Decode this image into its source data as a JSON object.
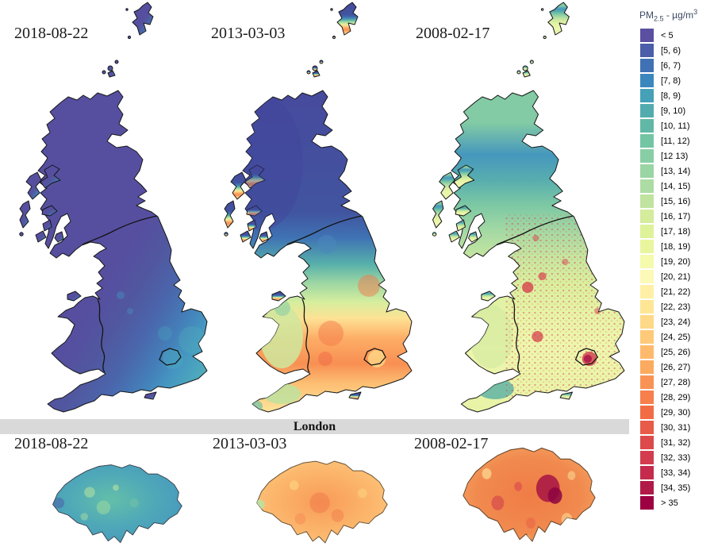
{
  "figure": {
    "background": "#ffffff"
  },
  "gb_row": {
    "panels": [
      {
        "date": "2018-08-22"
      },
      {
        "date": "2013-03-03"
      },
      {
        "date": "2008-02-17"
      }
    ]
  },
  "london_band": {
    "label": "London",
    "background": "#d9d9d9"
  },
  "london_row": {
    "panels": [
      {
        "date": "2018-08-22"
      },
      {
        "date": "2013-03-03"
      },
      {
        "date": "2008-02-17"
      }
    ]
  },
  "legend": {
    "title": {
      "prefix": "PM",
      "sub": "2.5",
      "mid": " - µg/m",
      "sup": "3"
    },
    "title_color": "#3b4a63",
    "entries": [
      {
        "label": "< 5",
        "color": "#5a4fa0"
      },
      {
        "label": "[5, 6)",
        "color": "#4c5ea9"
      },
      {
        "label": "[6, 7)",
        "color": "#4071b5"
      },
      {
        "label": "[7, 8)",
        "color": "#3b87bd"
      },
      {
        "label": "[8, 9)",
        "color": "#46a0b8"
      },
      {
        "label": "[9, 10)",
        "color": "#52acae"
      },
      {
        "label": "[10, 11)",
        "color": "#62b8a6"
      },
      {
        "label": "[11, 12)",
        "color": "#74c5a4"
      },
      {
        "label": "[12 13)",
        "color": "#88cea4"
      },
      {
        "label": "[13, 14)",
        "color": "#9ad5a4"
      },
      {
        "label": "[14, 15)",
        "color": "#acdca4"
      },
      {
        "label": "[15, 16)",
        "color": "#c0e3a0"
      },
      {
        "label": "[16, 17)",
        "color": "#d4ec9c"
      },
      {
        "label": "[17, 18)",
        "color": "#def29a"
      },
      {
        "label": "[18, 19)",
        "color": "#eaf69e"
      },
      {
        "label": "[19, 20)",
        "color": "#f5faad"
      },
      {
        "label": "[20, 21)",
        "color": "#fdf9b7"
      },
      {
        "label": "[21, 22)",
        "color": "#fff0a6"
      },
      {
        "label": "[22, 23)",
        "color": "#fee695"
      },
      {
        "label": "[23, 24)",
        "color": "#fed987"
      },
      {
        "label": "[24, 25)",
        "color": "#fec978"
      },
      {
        "label": "[25, 26)",
        "color": "#feba6c"
      },
      {
        "label": "[26, 27)",
        "color": "#fcaa5f"
      },
      {
        "label": "[27, 28)",
        "color": "#f99355"
      },
      {
        "label": "[28, 29)",
        "color": "#f67f4c"
      },
      {
        "label": "[29, 30)",
        "color": "#f26c44"
      },
      {
        "label": "[30, 31)",
        "color": "#e85b48"
      },
      {
        "label": "[31, 32)",
        "color": "#dd4a4c"
      },
      {
        "label": "[32, 33)",
        "color": "#d33c4f"
      },
      {
        "label": "[33, 34)",
        "color": "#c42b4c"
      },
      {
        "label": "[34, 35)",
        "color": "#b11a48"
      },
      {
        "label": "> 35",
        "color": "#9e0142"
      }
    ]
  }
}
